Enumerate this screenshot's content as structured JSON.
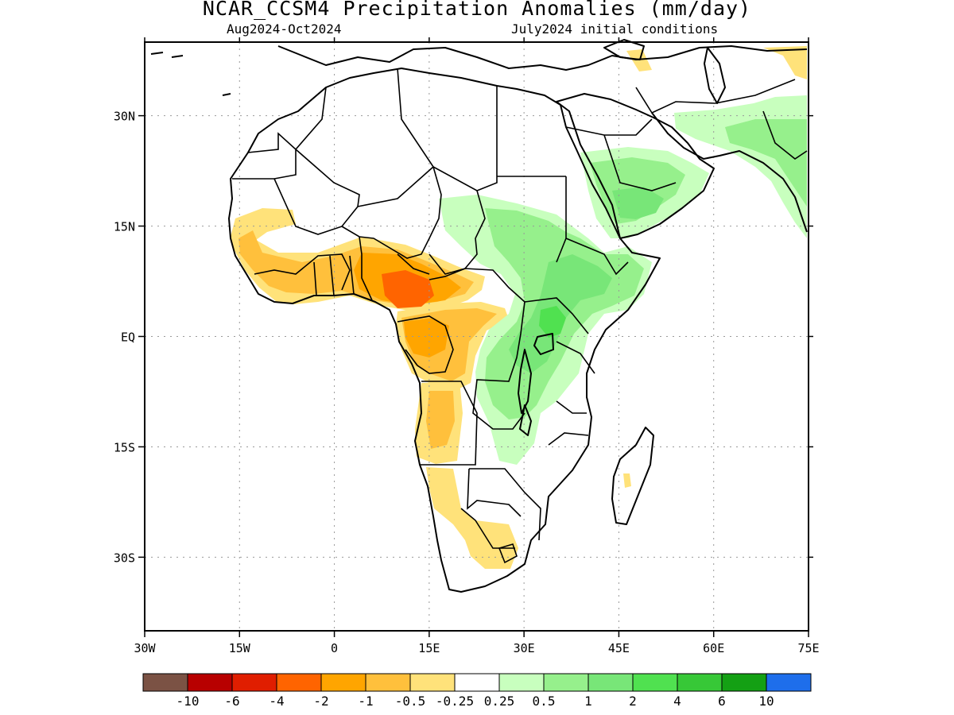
{
  "title": "NCAR_CCSM4 Precipitation Anomalies (mm/day)",
  "subtitle_left": "Aug2024-Oct2024",
  "subtitle_right": "July2024 initial conditions",
  "map": {
    "lon_range": [
      -30,
      75
    ],
    "lat_range": [
      -40,
      40
    ],
    "lon_ticks": [
      "30W",
      "15W",
      "0",
      "15E",
      "30E",
      "45E",
      "60E",
      "75E"
    ],
    "lat_ticks": [
      "30N",
      "15N",
      "EQ",
      "15S",
      "30S"
    ],
    "grid": "dotted"
  },
  "colorbar": {
    "colors": [
      "#7b5244",
      "#b80000",
      "#e01e00",
      "#ff6400",
      "#ffa500",
      "#ffc03c",
      "#ffe27a",
      "#ffffff",
      "#c8ffbe",
      "#96f08c",
      "#78e678",
      "#50e150",
      "#37c837",
      "#14a014",
      "#1e6eeb"
    ],
    "labels": [
      "-10",
      "-6",
      "-4",
      "-2",
      "-1",
      "-0.5",
      "-0.25",
      "0.25",
      "0.5",
      "1",
      "2",
      "4",
      "6",
      "10"
    ]
  }
}
